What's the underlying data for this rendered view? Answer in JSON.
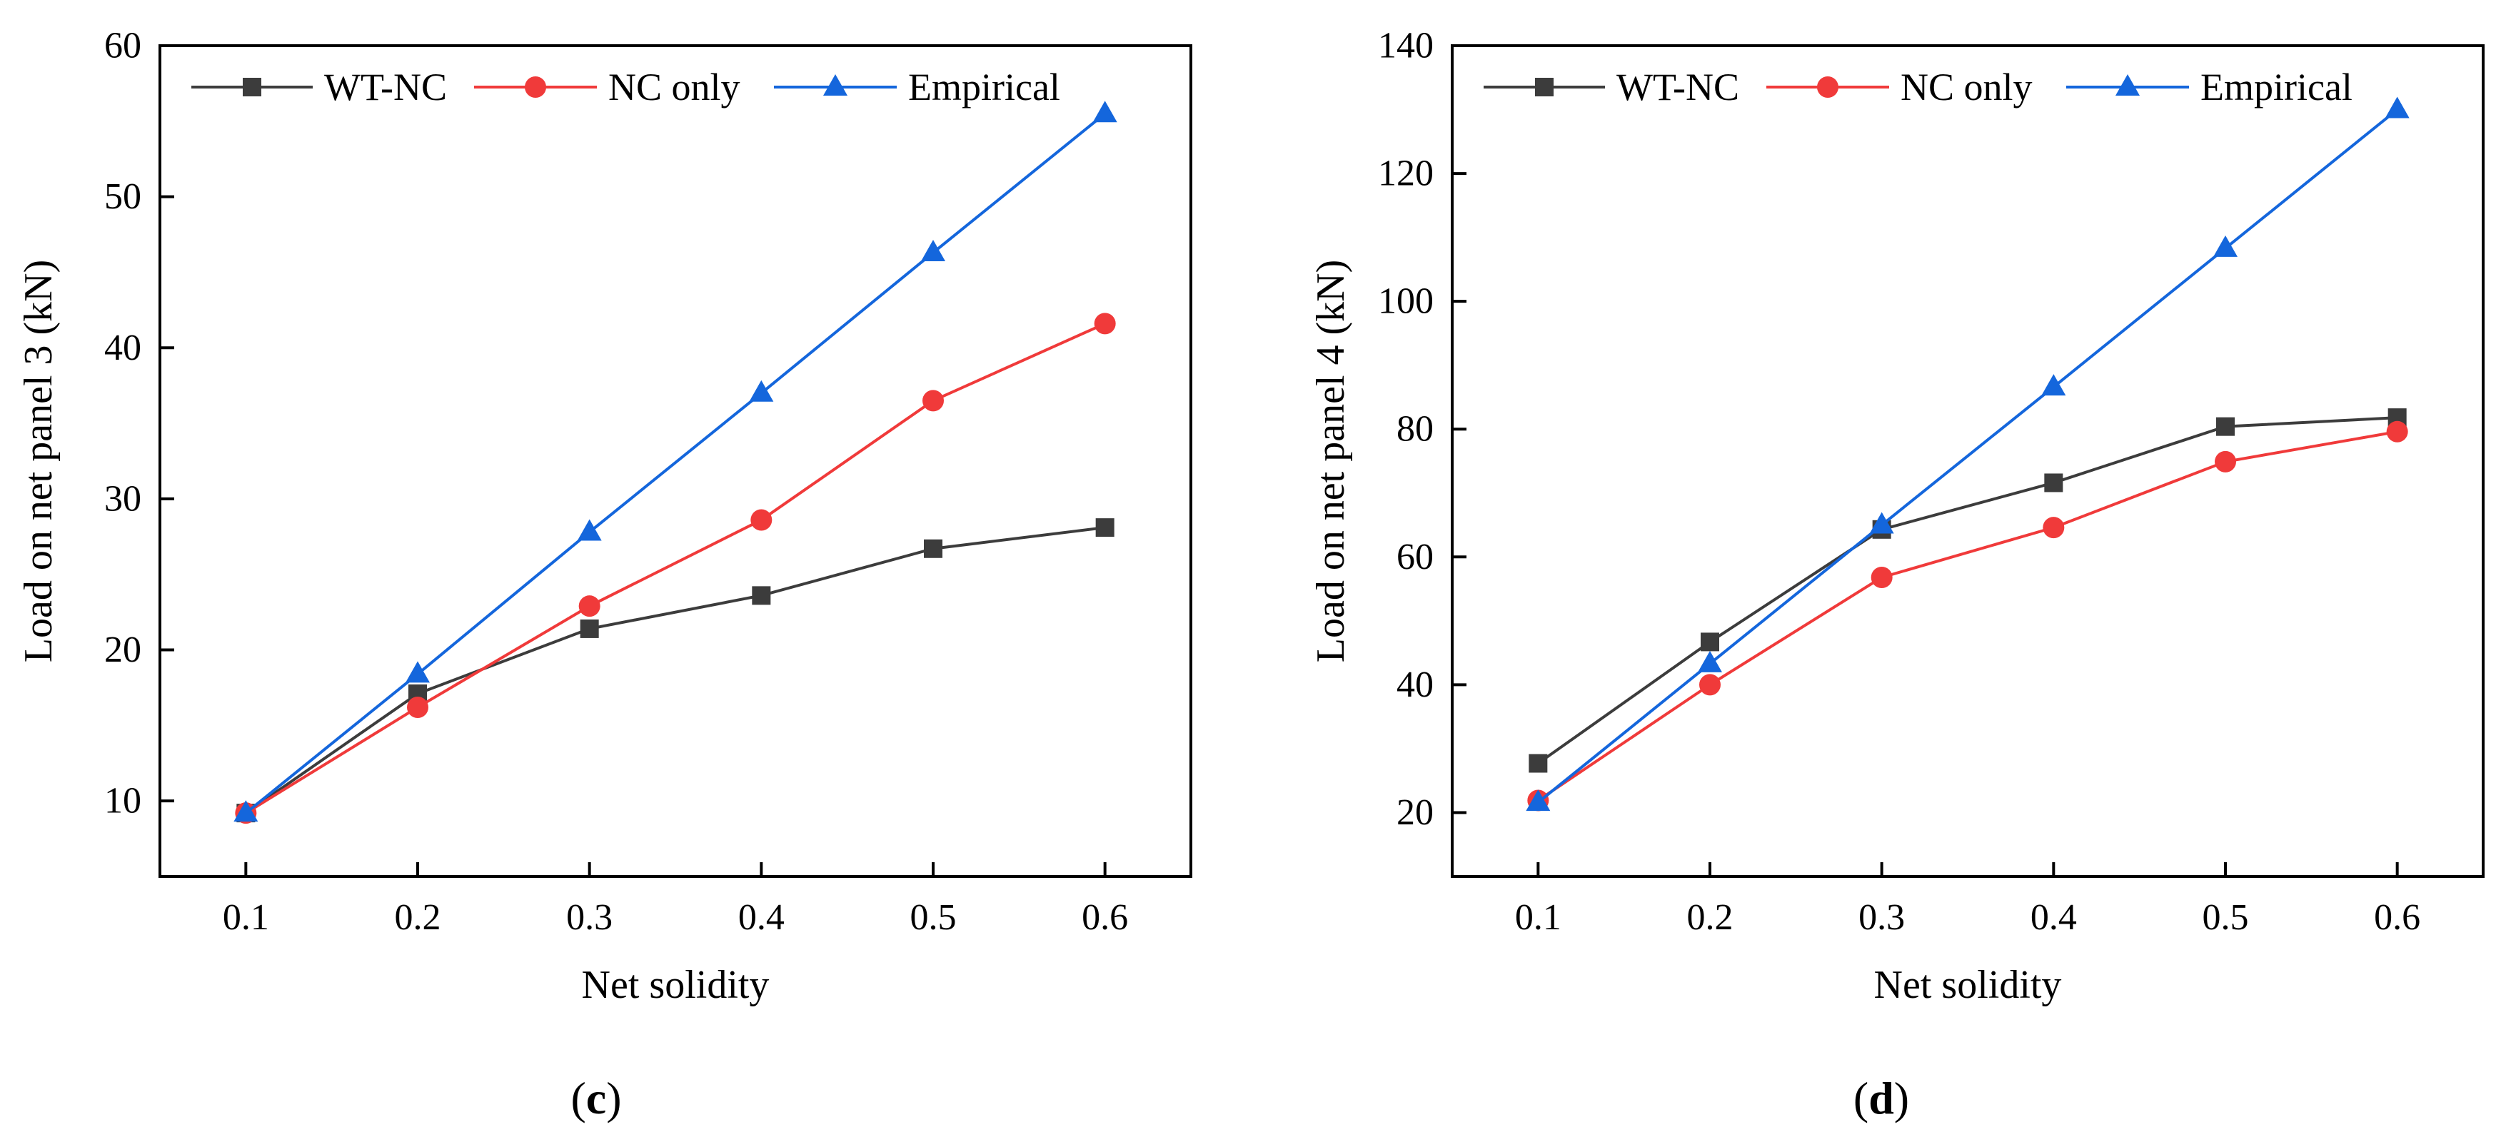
{
  "colors": {
    "wtnc": "#3c3c3c",
    "nconly": "#f03a3a",
    "empirical": "#1466dc",
    "axis": "#000000"
  },
  "chart_data": [
    {
      "type": "line",
      "panel_label_open": "(",
      "panel_label_letter": "c",
      "panel_label_close": ")",
      "xlabel": "Net solidity",
      "ylabel": "Load on net panel 3 (kN)",
      "x": [
        0.1,
        0.2,
        0.3,
        0.4,
        0.5,
        0.6
      ],
      "x_tick_labels": [
        "0.1",
        "0.2",
        "0.3",
        "0.4",
        "0.5",
        "0.6"
      ],
      "xlim": [
        0.05,
        0.65
      ],
      "ylim": [
        5,
        60
      ],
      "y_ticks": [
        10,
        20,
        30,
        40,
        50,
        60
      ],
      "y_tick_labels": [
        "10",
        "20",
        "30",
        "40",
        "50",
        "60"
      ],
      "legend_position": "top",
      "series": [
        {
          "name": "WT-NC",
          "marker": "square",
          "color_key": "wtnc",
          "values": [
            9.2,
            17.1,
            21.4,
            23.6,
            26.7,
            28.1
          ]
        },
        {
          "name": "NC only",
          "marker": "circle",
          "color_key": "nconly",
          "values": [
            9.2,
            16.2,
            22.9,
            28.6,
            36.5,
            41.6
          ]
        },
        {
          "name": "Empirical",
          "marker": "triangle",
          "color_key": "empirical",
          "values": [
            9.2,
            18.4,
            27.8,
            37.0,
            46.3,
            55.5
          ]
        }
      ]
    },
    {
      "type": "line",
      "panel_label_open": "(",
      "panel_label_letter": "d",
      "panel_label_close": ")",
      "xlabel": "Net solidity",
      "ylabel": "Load on net panel 4 (kN)",
      "x": [
        0.1,
        0.2,
        0.3,
        0.4,
        0.5,
        0.6
      ],
      "x_tick_labels": [
        "0.1",
        "0.2",
        "0.3",
        "0.4",
        "0.5",
        "0.6"
      ],
      "xlim": [
        0.05,
        0.65
      ],
      "ylim": [
        10,
        140
      ],
      "y_ticks": [
        20,
        40,
        60,
        80,
        100,
        120,
        140
      ],
      "y_tick_labels": [
        "20",
        "40",
        "60",
        "80",
        "100",
        "120",
        "140"
      ],
      "legend_position": "top",
      "series": [
        {
          "name": "WT-NC",
          "marker": "square",
          "color_key": "wtnc",
          "values": [
            27.7,
            46.7,
            64.3,
            71.6,
            80.4,
            81.8
          ]
        },
        {
          "name": "NC only",
          "marker": "circle",
          "color_key": "nconly",
          "values": [
            21.9,
            40.0,
            56.8,
            64.6,
            74.9,
            79.6
          ]
        },
        {
          "name": "Empirical",
          "marker": "triangle",
          "color_key": "empirical",
          "values": [
            21.6,
            43.3,
            65.0,
            86.6,
            108.3,
            130.0
          ]
        }
      ]
    }
  ]
}
